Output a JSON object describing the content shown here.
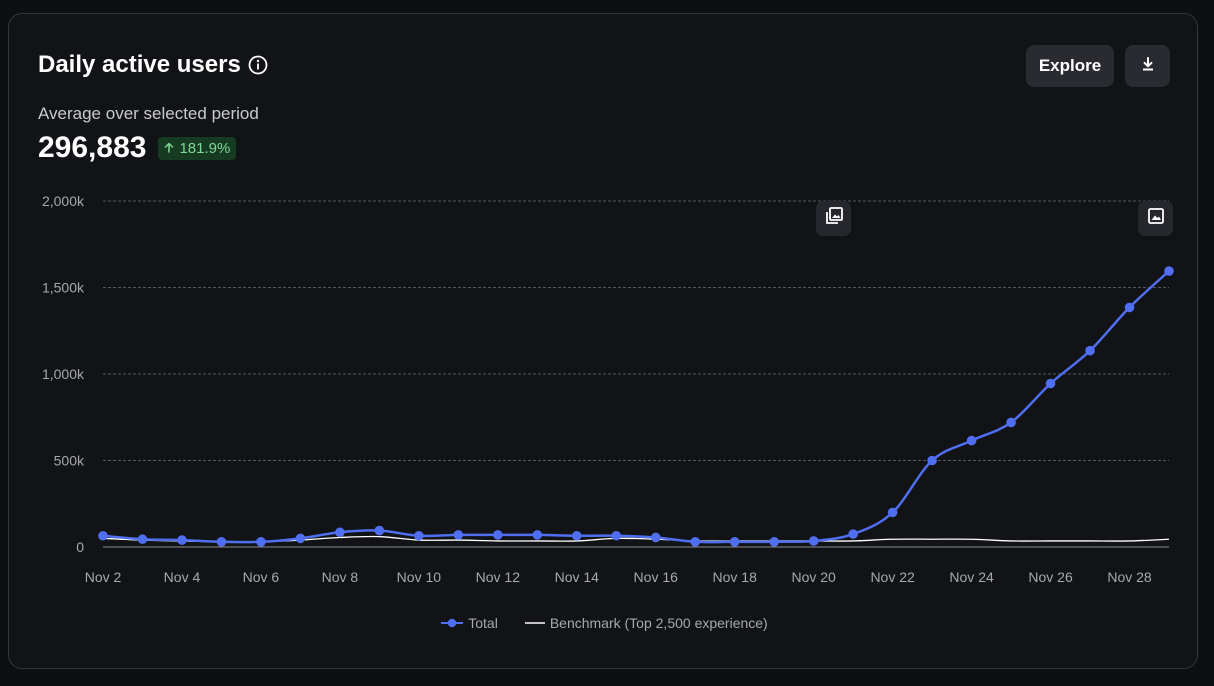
{
  "header": {
    "title": "Daily active users",
    "subtitle": "Average over selected period",
    "metric_value": "296,883",
    "change_badge": "181.9%",
    "explore_label": "Explore"
  },
  "colors": {
    "series_total": "#4f6ef0",
    "series_benchmark": "#ffffff",
    "badge_bg": "#163a22",
    "badge_text": "#7fd897"
  },
  "icons": {
    "info": "info-icon",
    "download": "download-icon",
    "annotation_gallery": "image-gallery-icon",
    "annotation_image": "image-icon",
    "trend": "arrow-up-icon"
  },
  "chart_data": {
    "type": "line",
    "title": "",
    "xlabel": "",
    "ylabel": "",
    "ylim": [
      0,
      2000000
    ],
    "y_ticks": [
      0,
      500000,
      1000000,
      1500000,
      2000000
    ],
    "y_tick_labels": [
      "0",
      "500k",
      "1,000k",
      "1,500k",
      "2,000k"
    ],
    "x": [
      "Nov 2",
      "Nov 3",
      "Nov 4",
      "Nov 5",
      "Nov 6",
      "Nov 7",
      "Nov 8",
      "Nov 9",
      "Nov 10",
      "Nov 11",
      "Nov 12",
      "Nov 13",
      "Nov 14",
      "Nov 15",
      "Nov 16",
      "Nov 17",
      "Nov 18",
      "Nov 19",
      "Nov 20",
      "Nov 21",
      "Nov 22",
      "Nov 23",
      "Nov 24",
      "Nov 25",
      "Nov 26",
      "Nov 27",
      "Nov 28",
      "Nov 29"
    ],
    "x_tick_labels": [
      "Nov 2",
      "Nov 4",
      "Nov 6",
      "Nov 8",
      "Nov 10",
      "Nov 12",
      "Nov 14",
      "Nov 16",
      "Nov 18",
      "Nov 20",
      "Nov 22",
      "Nov 24",
      "Nov 26",
      "Nov 28"
    ],
    "grid": true,
    "legend_position": "bottom-center",
    "series": [
      {
        "name": "Total",
        "values": [
          65000,
          45000,
          40000,
          30000,
          30000,
          50000,
          85000,
          95000,
          65000,
          70000,
          70000,
          70000,
          65000,
          65000,
          55000,
          30000,
          30000,
          30000,
          35000,
          75000,
          200000,
          500000,
          615000,
          720000,
          945000,
          1135000,
          1385000,
          1595000
        ]
      },
      {
        "name": "Benchmark (Top 2,500 experience)",
        "values": [
          50000,
          40000,
          35000,
          30000,
          30000,
          40000,
          55000,
          60000,
          40000,
          40000,
          35000,
          35000,
          35000,
          50000,
          45000,
          35000,
          35000,
          35000,
          35000,
          35000,
          45000,
          45000,
          45000,
          35000,
          35000,
          35000,
          35000,
          45000
        ]
      }
    ],
    "annotations": [
      {
        "x": "Nov 20.5",
        "icon": "image-gallery-icon"
      },
      {
        "x": "Nov 28.5",
        "icon": "image-icon"
      }
    ]
  }
}
